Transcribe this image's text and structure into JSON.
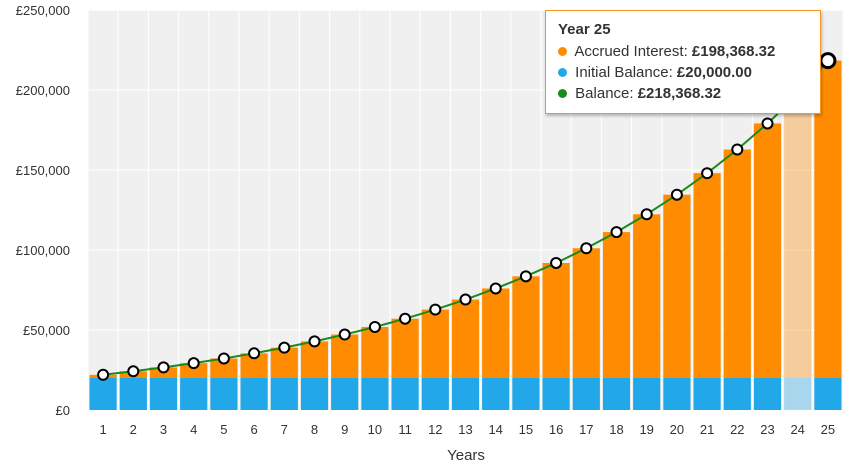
{
  "chart_data": {
    "type": "bar",
    "xlabel": "Years",
    "ylabel": "",
    "ylim": [
      0,
      250000
    ],
    "y_ticks": [
      "£0",
      "£50,000",
      "£100,000",
      "£150,000",
      "£200,000",
      "£250,000"
    ],
    "y_tick_values": [
      0,
      50000,
      100000,
      150000,
      200000,
      250000
    ],
    "categories": [
      "1",
      "2",
      "3",
      "4",
      "5",
      "6",
      "7",
      "8",
      "9",
      "10",
      "11",
      "12",
      "13",
      "14",
      "15",
      "16",
      "17",
      "18",
      "19",
      "20",
      "21",
      "22",
      "23",
      "24",
      "25"
    ],
    "stacked": true,
    "grid": true,
    "series": [
      {
        "name": "Initial Balance",
        "kind": "bar",
        "color": "#22a7e8",
        "values": [
          20000,
          20000,
          20000,
          20000,
          20000,
          20000,
          20000,
          20000,
          20000,
          20000,
          20000,
          20000,
          20000,
          20000,
          20000,
          20000,
          20000,
          20000,
          20000,
          20000,
          20000,
          20000,
          20000,
          20000,
          20000
        ]
      },
      {
        "name": "Accrued Interest",
        "kind": "bar",
        "color": "#ff8c00",
        "values": [
          2000,
          4200,
          6620,
          9282,
          12210,
          15431,
          18974,
          22872,
          27159,
          31875,
          37062,
          42769,
          49045,
          55950,
          63545,
          71899,
          81089,
          91198,
          102318,
          114550,
          128005,
          142805,
          159086,
          176995,
          198368
        ]
      },
      {
        "name": "Balance",
        "kind": "line",
        "color": "#1a8a1a",
        "values": [
          22000,
          24200,
          26620,
          29282,
          32210,
          35431,
          38974,
          42872,
          47159,
          51875,
          57062,
          62769,
          69045,
          75950,
          83545,
          91899,
          101089,
          111198,
          122318,
          134550,
          148005,
          162805,
          179086,
          196995,
          218368
        ]
      }
    ],
    "highlight_index": 24
  },
  "tooltip": {
    "title": "Year 25",
    "rows": [
      {
        "label": "Accrued Interest:",
        "value": "£198,368.32",
        "color": "#ff8c00"
      },
      {
        "label": "Initial Balance:",
        "value": "£20,000.00",
        "color": "#22a7e8"
      },
      {
        "label": "Balance:",
        "value": "£218,368.32",
        "color": "#1a8a1a"
      }
    ]
  }
}
